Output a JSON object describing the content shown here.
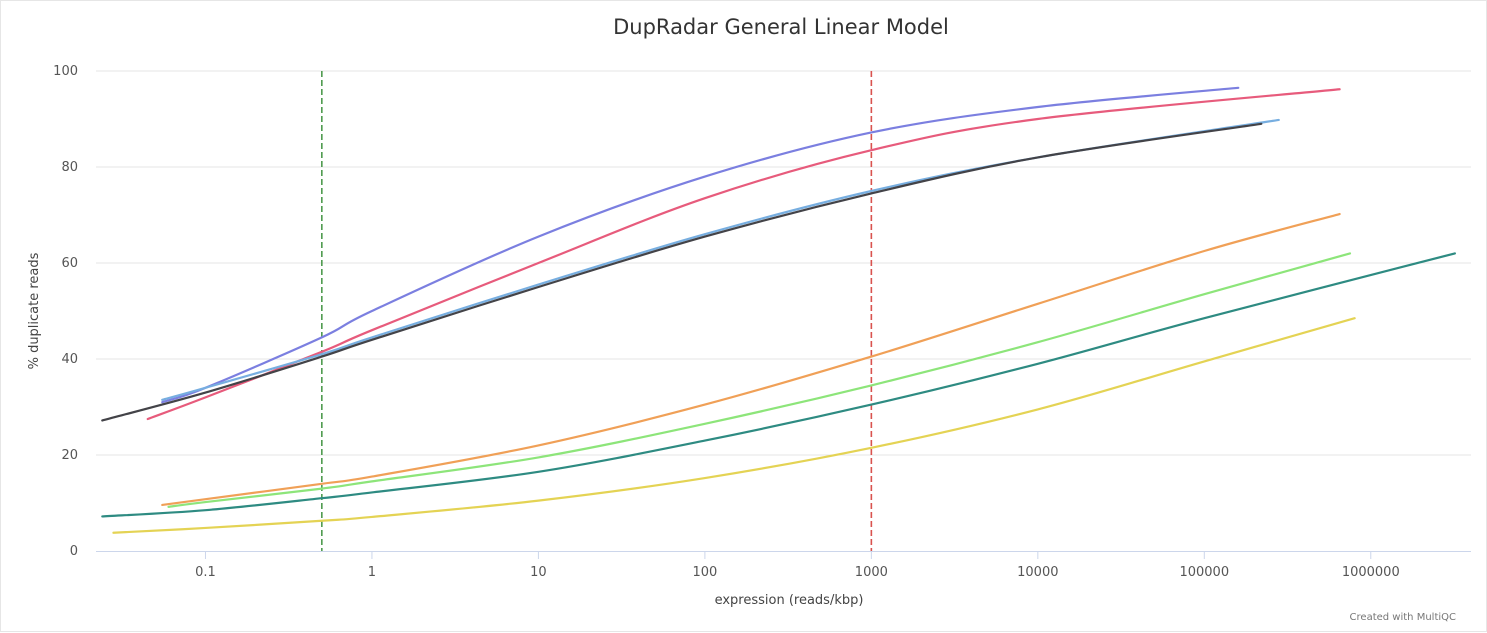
{
  "chart_data": {
    "type": "line",
    "title": "DupRadar General Linear Model",
    "xlabel": "expression (reads/kbp)",
    "ylabel": "% duplicate reads",
    "x_scale": "log",
    "xlim": [
      0.022,
      4000000
    ],
    "ylim": [
      0,
      100
    ],
    "x_ticks": [
      "0.1",
      "1",
      "10",
      "100",
      "1000",
      "10000",
      "100000",
      "1000000"
    ],
    "y_ticks": [
      "0",
      "20",
      "40",
      "60",
      "80",
      "100"
    ],
    "grid": true,
    "legend": "none",
    "reference_lines": [
      {
        "x": 0.5,
        "color": "#4e9a4e",
        "style": "dashed"
      },
      {
        "x": 1000,
        "color": "#d9534f",
        "style": "dashed"
      }
    ],
    "series": [
      {
        "color": "#7b7fe0",
        "x": [
          0.055,
          0.1,
          0.5,
          1,
          10,
          100,
          1000,
          10000,
          160000
        ],
        "y": [
          31,
          34,
          44.5,
          50,
          65.5,
          78,
          87.2,
          92.5,
          96.5
        ]
      },
      {
        "color": "#e75b7c",
        "x": [
          0.045,
          0.1,
          0.5,
          1,
          10,
          100,
          1000,
          10000,
          650000
        ],
        "y": [
          27.5,
          32,
          41.5,
          46,
          60,
          73.5,
          83.5,
          90,
          96.2
        ]
      },
      {
        "color": "#77aee0",
        "x": [
          0.055,
          0.1,
          0.5,
          1,
          10,
          100,
          1000,
          10000,
          280000
        ],
        "y": [
          31.5,
          34,
          41,
          44.5,
          55.5,
          66,
          75,
          82,
          89.8
        ]
      },
      {
        "color": "#434348",
        "x": [
          0.024,
          0.1,
          0.5,
          1,
          10,
          100,
          1000,
          10000,
          220000
        ],
        "y": [
          27.2,
          33,
          40.5,
          44,
          55,
          65.5,
          74.5,
          82,
          89
        ]
      },
      {
        "color": "#f0a057",
        "x": [
          0.055,
          0.1,
          0.5,
          1,
          10,
          100,
          1000,
          10000,
          100000,
          650000
        ],
        "y": [
          9.6,
          10.8,
          14,
          15.5,
          22,
          30.5,
          40.5,
          51.5,
          62.5,
          70.2
        ]
      },
      {
        "color": "#8de57a",
        "x": [
          0.06,
          0.1,
          0.5,
          1,
          10,
          100,
          1000,
          10000,
          100000,
          750000
        ],
        "y": [
          9.2,
          10.2,
          13,
          14.5,
          19.5,
          26.5,
          34.5,
          43.5,
          53.5,
          62
        ]
      },
      {
        "color": "#2e8b82",
        "x": [
          0.024,
          0.1,
          0.5,
          1,
          10,
          100,
          1000,
          10000,
          100000,
          3200000
        ],
        "y": [
          7.2,
          8.5,
          11,
          12.2,
          16.5,
          23,
          30.5,
          39,
          48.5,
          62
        ]
      },
      {
        "color": "#e4d354",
        "x": [
          0.028,
          0.1,
          0.5,
          1,
          10,
          100,
          1000,
          10000,
          100000,
          800000
        ],
        "y": [
          3.8,
          4.8,
          6.3,
          7.1,
          10.5,
          15.2,
          21.5,
          29.5,
          39.5,
          48.5
        ]
      }
    ]
  },
  "footer": {
    "credit": "Created with MultiQC"
  }
}
